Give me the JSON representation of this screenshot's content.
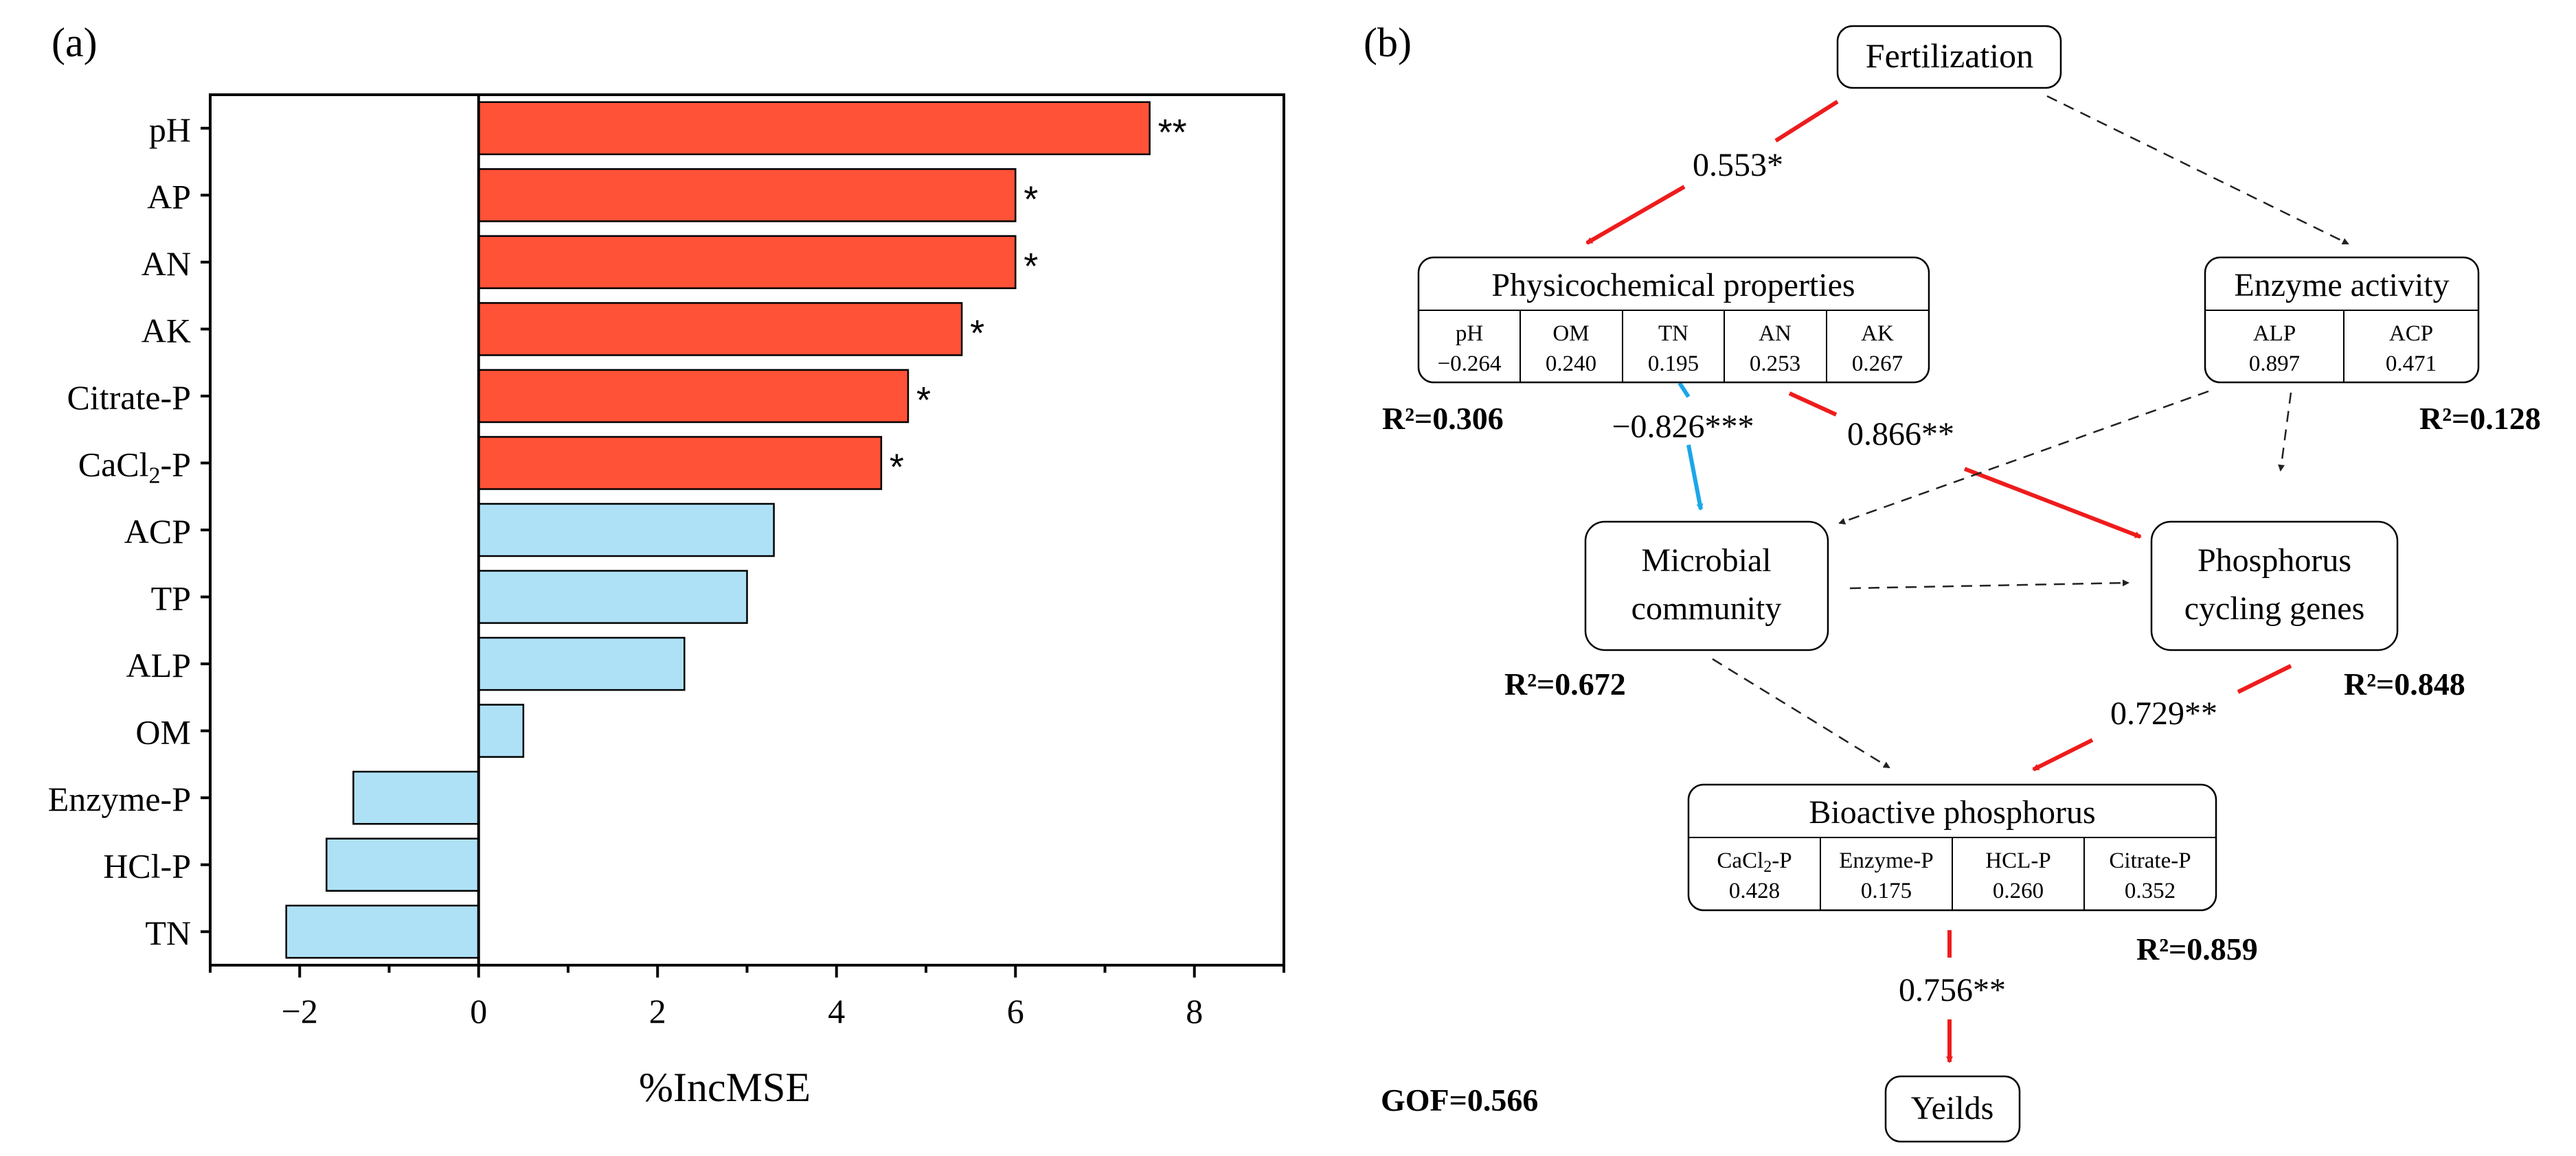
{
  "chart_data": [
    {
      "type": "bar",
      "panel": "(a)",
      "orientation": "horizontal",
      "xlabel": "%IncMSE",
      "xlim": [
        -3,
        9
      ],
      "x_ticks": [
        "−2",
        "0",
        "2",
        "4",
        "6",
        "8"
      ],
      "x_tick_values": [
        -2,
        0,
        2,
        4,
        6,
        8
      ],
      "categories": [
        "pH",
        "AP",
        "AN",
        "AK",
        "Citrate-P",
        "CaCl2-P",
        "ACP",
        "TP",
        "ALP",
        "OM",
        "Enzyme-P",
        "HCl-P",
        "TN"
      ],
      "category_subscripts": [
        "",
        "",
        "",
        "",
        "",
        "2",
        "",
        "",
        "",
        "",
        "",
        "",
        ""
      ],
      "values": [
        7.5,
        6.0,
        6.0,
        5.4,
        4.8,
        4.5,
        3.3,
        3.0,
        2.3,
        0.5,
        -1.4,
        -1.7,
        -2.15
      ],
      "significance": [
        "**",
        "*",
        "*",
        "*",
        "*",
        "*",
        "",
        "",
        "",
        "",
        "",
        "",
        ""
      ],
      "colors": {
        "significant": "#ff5237",
        "nonsignificant": "#aee1f6"
      }
    },
    {
      "type": "diagram",
      "panel": "(b)",
      "nodes": {
        "fertilization": "Fertilization",
        "physico": {
          "title": "Physicochemical properties",
          "cols": [
            {
              "name": "pH",
              "val": "−0.264"
            },
            {
              "name": "OM",
              "val": "0.240"
            },
            {
              "name": "TN",
              "val": "0.195"
            },
            {
              "name": "AN",
              "val": "0.253"
            },
            {
              "name": "AK",
              "val": "0.267"
            }
          ],
          "r2": "R²=0.306"
        },
        "enzyme": {
          "title": "Enzyme activity",
          "cols": [
            {
              "name": "ALP",
              "val": "0.897"
            },
            {
              "name": "ACP",
              "val": "0.471"
            }
          ],
          "r2": "R²=0.128"
        },
        "microbial": {
          "line1": "Microbial",
          "line2": "community",
          "r2": "R²=0.672"
        },
        "phosphorus": {
          "line1": "Phosphorus",
          "line2": "cycling genes",
          "r2": "R²=0.848"
        },
        "bioactive": {
          "title": "Bioactive phosphorus",
          "cols": [
            {
              "name": "CaCl",
              "sub": "2",
              "suffix": "-P",
              "val": "0.428"
            },
            {
              "name": "Enzyme-P",
              "sub": "",
              "suffix": "",
              "val": "0.175"
            },
            {
              "name": "HCL-P",
              "sub": "",
              "suffix": "",
              "val": "0.260"
            },
            {
              "name": "Citrate-P",
              "sub": "",
              "suffix": "",
              "val": "0.352"
            }
          ],
          "r2": "R²=0.859"
        },
        "yields": "Yeilds"
      },
      "paths": [
        {
          "from": "Fertilization",
          "to": "Physicochemical properties",
          "coef": "0.553*",
          "style": "significant-positive"
        },
        {
          "from": "Fertilization",
          "to": "Enzyme activity",
          "coef": "",
          "style": "nonsignificant"
        },
        {
          "from": "Physicochemical properties",
          "to": "Microbial community",
          "coef": "−0.826***",
          "style": "significant-negative"
        },
        {
          "from": "Physicochemical properties",
          "to": "Phosphorus cycling genes",
          "coef": "0.866**",
          "style": "significant-positive"
        },
        {
          "from": "Enzyme activity",
          "to": "Microbial community",
          "coef": "",
          "style": "nonsignificant"
        },
        {
          "from": "Enzyme activity",
          "to": "Phosphorus cycling genes",
          "coef": "",
          "style": "nonsignificant"
        },
        {
          "from": "Microbial community",
          "to": "Phosphorus cycling genes",
          "coef": "",
          "style": "nonsignificant"
        },
        {
          "from": "Microbial community",
          "to": "Bioactive phosphorus",
          "coef": "",
          "style": "nonsignificant"
        },
        {
          "from": "Phosphorus cycling genes",
          "to": "Bioactive phosphorus",
          "coef": "0.729**",
          "style": "significant-positive"
        },
        {
          "from": "Bioactive phosphorus",
          "to": "Yeilds",
          "coef": "0.756**",
          "style": "significant-positive"
        }
      ],
      "gof": "GOF=0.566",
      "colors": {
        "positive": "#ee1c1c",
        "negative": "#1ba7e8",
        "nonsignificant": "#222222"
      }
    }
  ]
}
